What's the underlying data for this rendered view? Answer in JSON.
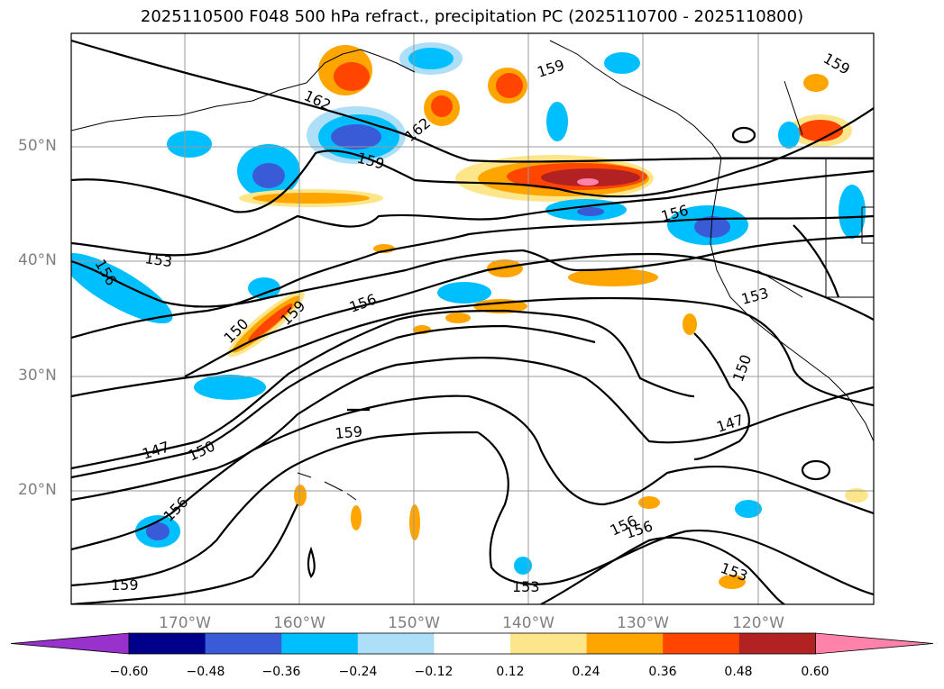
{
  "title": "2025110500 F048 500 hPa refract., precipitation PC (2025110700 - 2025110800)",
  "latitude_labels": [
    "50°N",
    "40°N",
    "30°N",
    "20°N"
  ],
  "longitude_labels": [
    "170°W",
    "160°W",
    "150°W",
    "140°W",
    "130°W",
    "120°W"
  ],
  "contour_labels": [
    "159",
    "162",
    "162",
    "159",
    "159",
    "156",
    "153",
    "156",
    "156",
    "150",
    "159",
    "153",
    "150",
    "147",
    "147",
    "150",
    "159",
    "156",
    "159",
    "153",
    "156",
    "156",
    "153"
  ],
  "colorbar": {
    "ticks": [
      "−0.60",
      "−0.48",
      "−0.36",
      "−0.24",
      "−0.12",
      "0.12",
      "0.24",
      "0.36",
      "0.48",
      "0.60"
    ],
    "colors": [
      "#9932CC",
      "#00008B",
      "#3A5BD8",
      "#00BFFF",
      "#ADDFF8",
      "#FFFFFF",
      "#FDE68A",
      "#FFA500",
      "#FF4500",
      "#B22222",
      "#FF82AB"
    ]
  }
}
